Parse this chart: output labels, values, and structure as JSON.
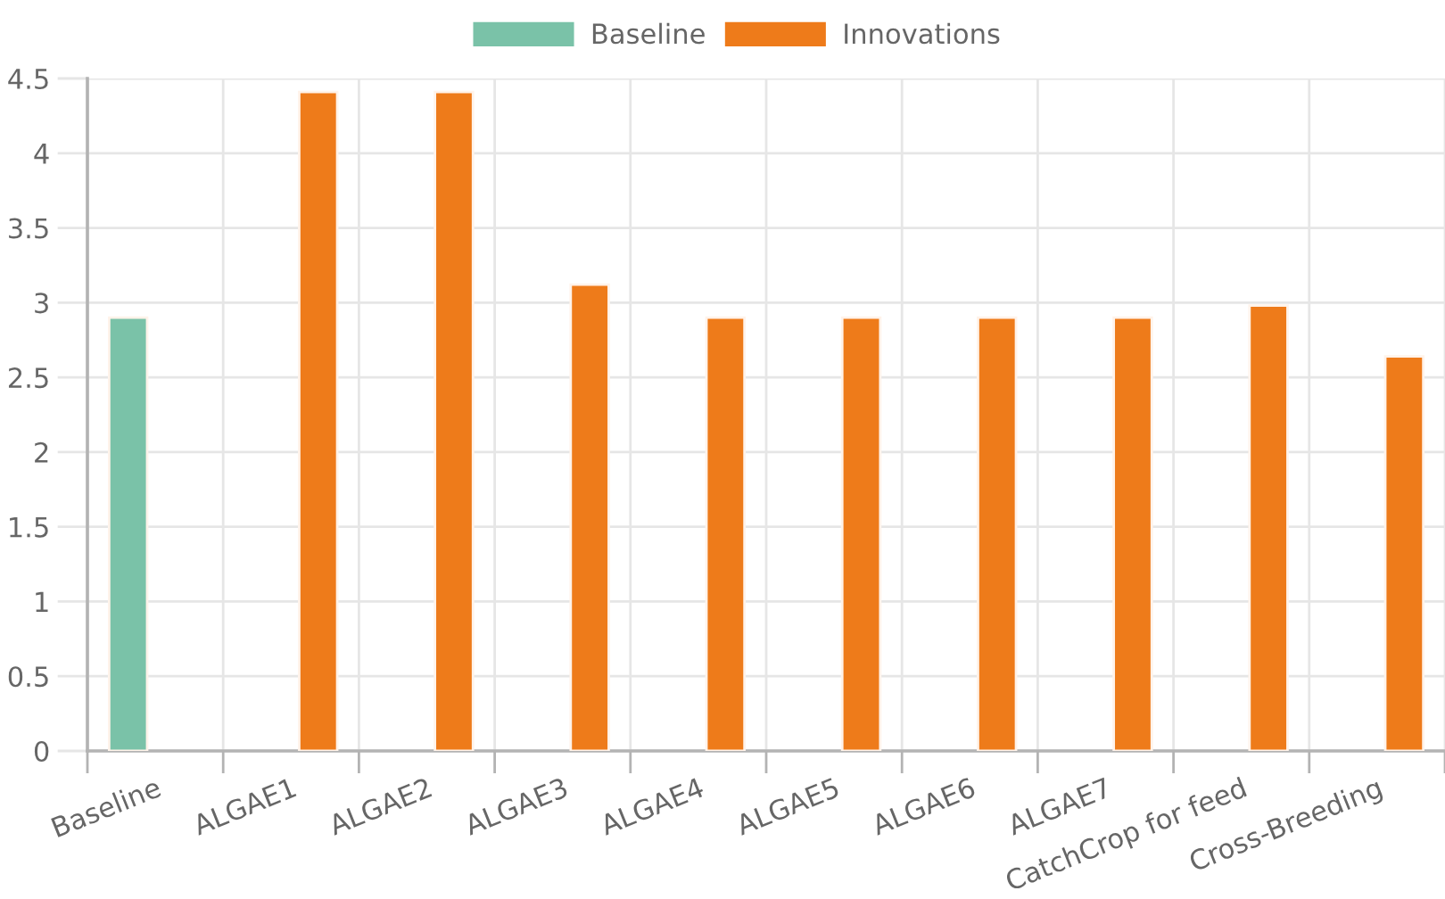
{
  "chart_data": {
    "type": "bar",
    "categories": [
      "Baseline",
      "ALGAE1",
      "ALGAE2",
      "ALGAE3",
      "ALGAE4",
      "ALGAE5",
      "ALGAE6",
      "ALGAE7",
      "CatchCrop for feed",
      "Cross-Breeding"
    ],
    "series": [
      {
        "name": "Baseline",
        "color": "#7ac2a8",
        "values": [
          2.9,
          null,
          null,
          null,
          null,
          null,
          null,
          null,
          null,
          null
        ]
      },
      {
        "name": "Innovations",
        "color": "#ee7b1a",
        "values": [
          null,
          4.41,
          4.41,
          3.12,
          2.9,
          2.9,
          2.9,
          2.9,
          2.98,
          2.64
        ]
      }
    ],
    "ylim": [
      0,
      4.5
    ],
    "yticks": [
      0,
      0.5,
      1,
      1.5,
      2,
      2.5,
      3,
      3.5,
      4,
      4.5
    ],
    "grid": true,
    "legend": "top"
  }
}
